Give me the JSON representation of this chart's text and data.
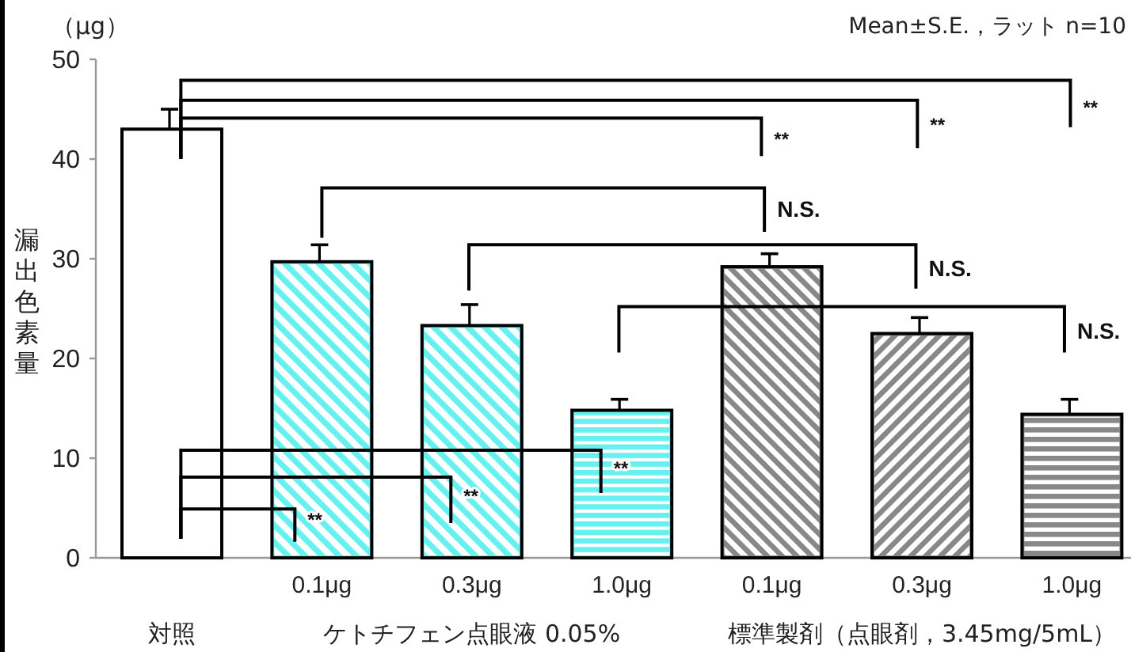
{
  "chart_data": {
    "type": "bar",
    "ylabel": "漏出色素量",
    "categories": [
      null,
      "0.1μg",
      "0.3μg",
      "1.0μg",
      "0.1μg",
      "0.3μg",
      "1.0μg"
    ],
    "values": [
      43.0,
      29.7,
      23.3,
      14.8,
      29.2,
      22.5,
      14.4
    ],
    "errors": [
      2.0,
      1.7,
      2.1,
      1.1,
      1.3,
      1.6,
      1.5
    ],
    "colors": [
      "#ffffff",
      "#66f0f0",
      "#66f0f0",
      "#66f0f0",
      "#888888",
      "#888888",
      "#888888"
    ],
    "ylim": [
      0,
      50
    ],
    "yticks": [
      0,
      10,
      20,
      30,
      40,
      50
    ],
    "annotations": [
      "（μg）",
      "Mean±S.E.，ラット n=10",
      "対照",
      "ケトチフェン点眼液 0.05%",
      "標準製剤（点眼剤，3.45mg/5mL）",
      "**",
      "**",
      "**",
      "N.S.",
      "N.S.",
      "N.S.",
      "**",
      "**",
      "**"
    ]
  }
}
